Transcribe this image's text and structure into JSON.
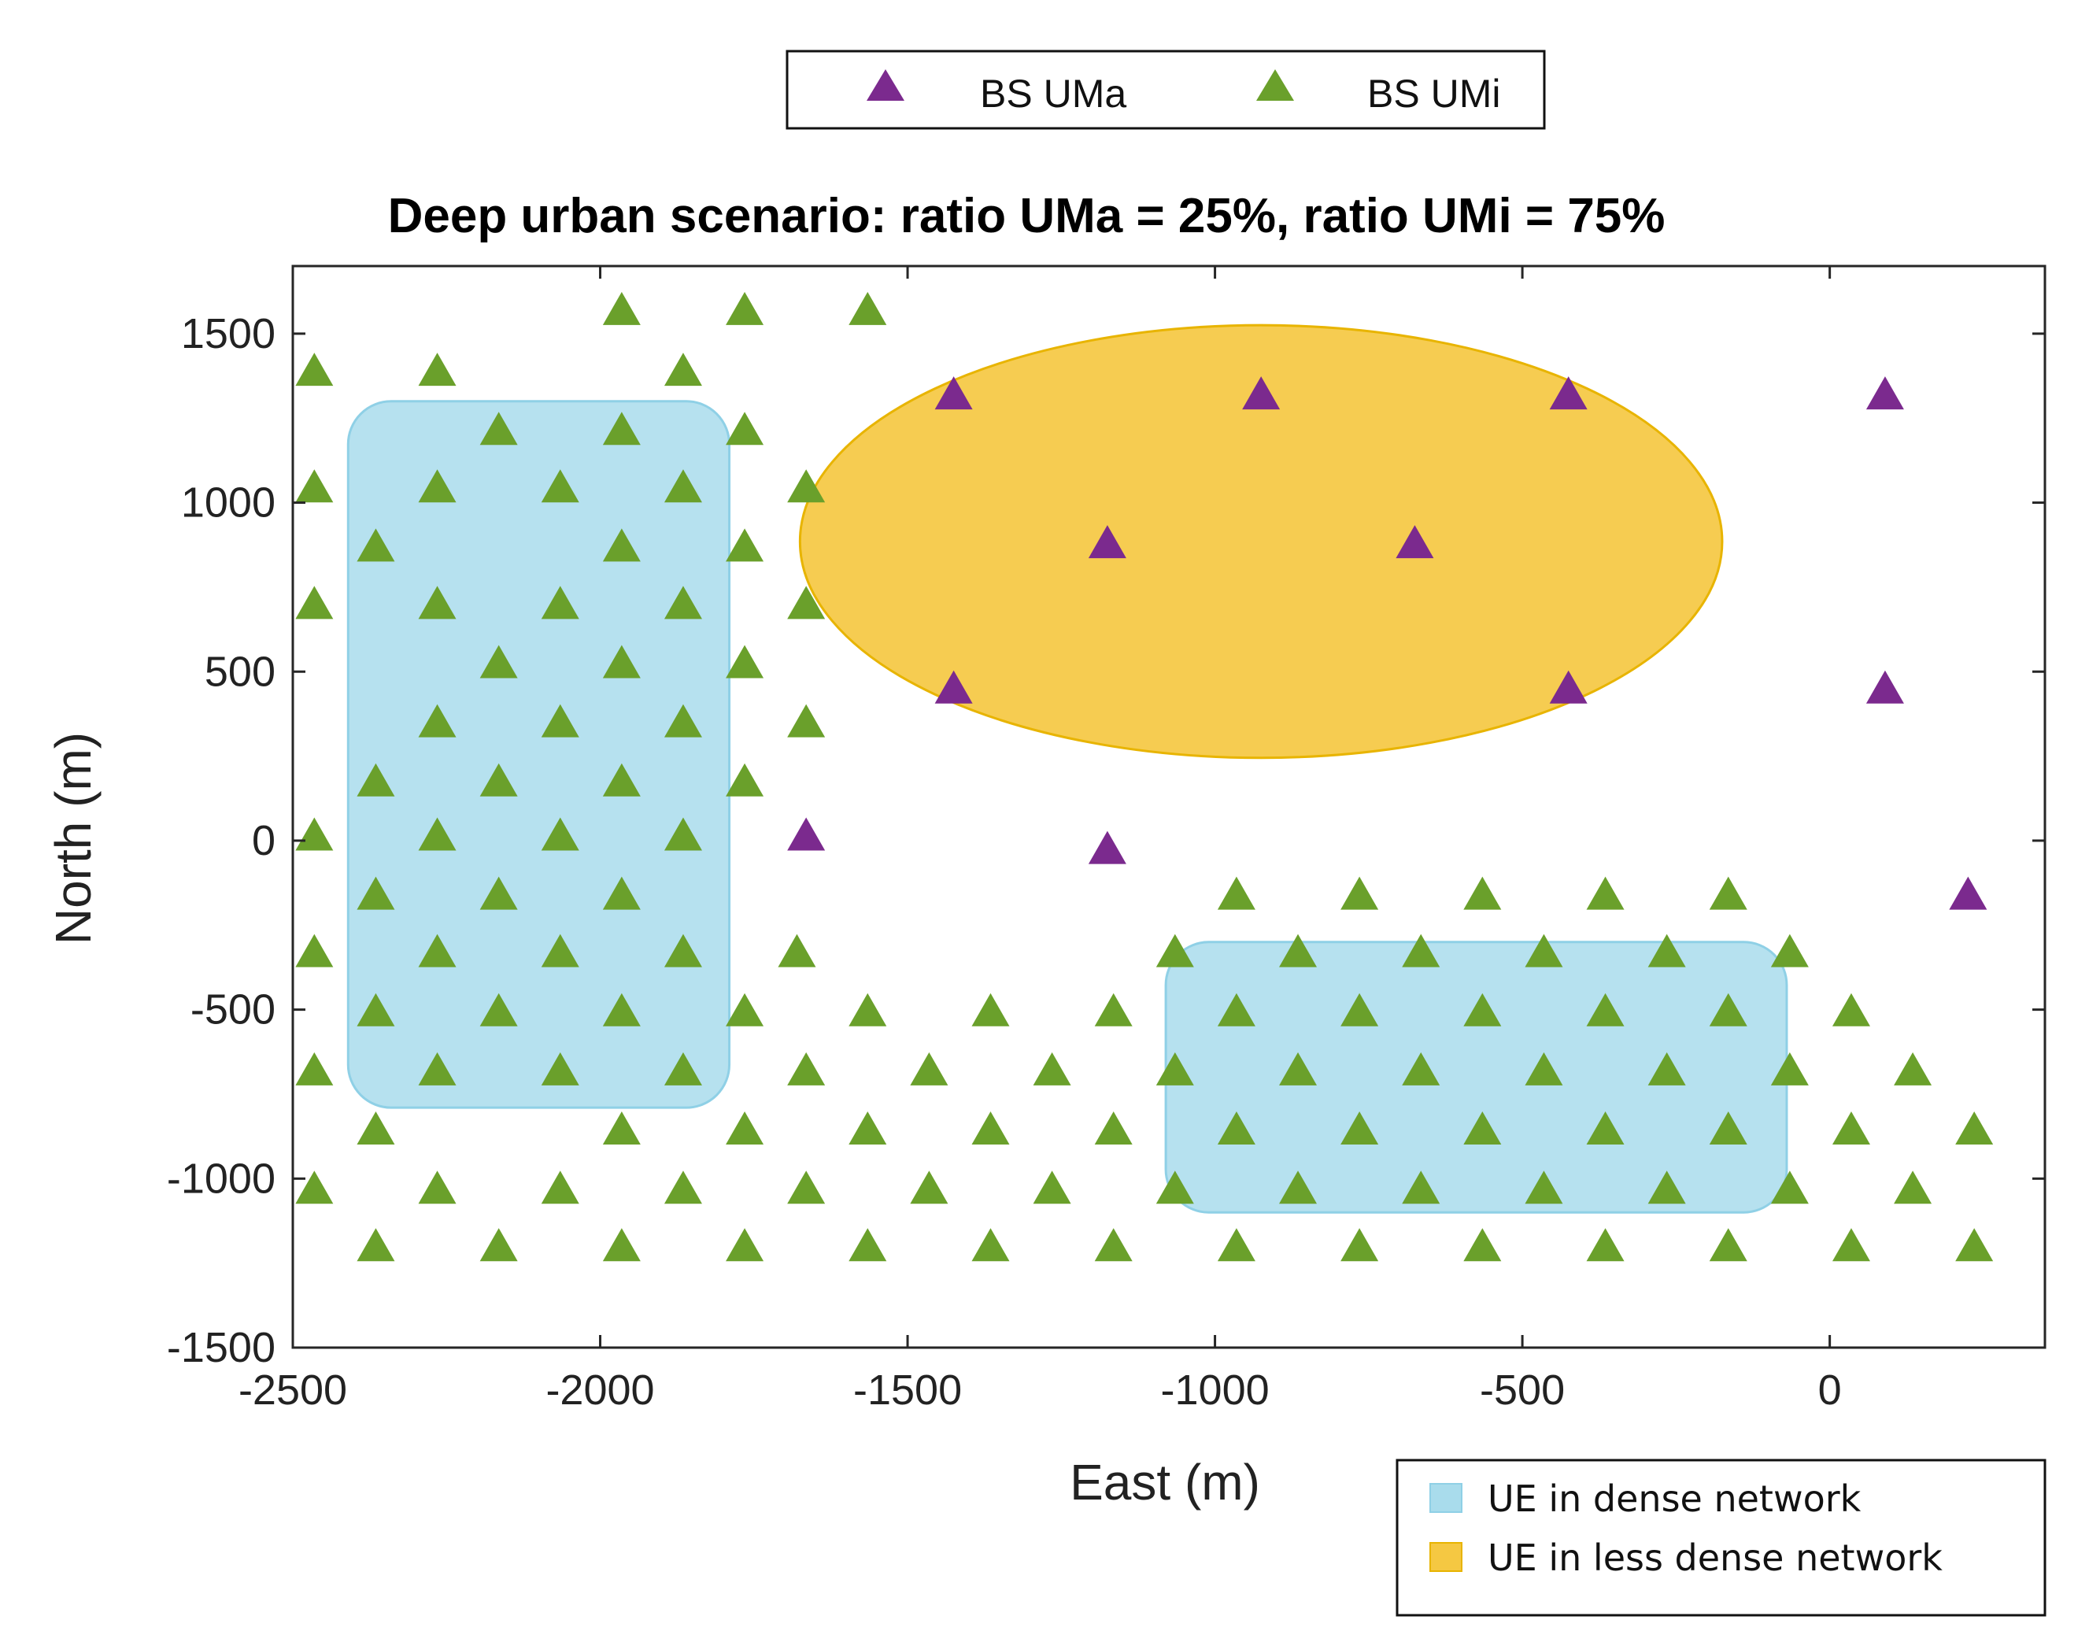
{
  "chart_data": {
    "type": "scatter",
    "title": "Deep urban scenario: ratio UMa = 25%, ratio UMi = 75%",
    "xlabel": "East (m)",
    "ylabel": "North (m)",
    "xlim": [
      -2500,
      350
    ],
    "ylim": [
      -1500,
      1700
    ],
    "xticks": [
      -2500,
      -2000,
      -1500,
      -1000,
      -500,
      0
    ],
    "yticks": [
      -1500,
      -1000,
      -500,
      0,
      500,
      1000,
      1500
    ],
    "xtick_labels": [
      "-2500",
      "-2000",
      "-1500",
      "-1000",
      "-500",
      "0"
    ],
    "ytick_labels": [
      "-1500",
      "-1000",
      "-500",
      "0",
      "500",
      "1000",
      "1500"
    ],
    "grid": false,
    "colors": {
      "umi": "#6aa02b",
      "uma": "#7b2a8e",
      "dense_fill": "#a9dcec",
      "dense_edge": "#8fd0e6",
      "less_dense_fill": "#f5c842",
      "less_dense_edge": "#e8b400"
    },
    "series": [
      {
        "name": "BS UMa",
        "marker": "triangle",
        "points": [
          [
            -1425,
            1320
          ],
          [
            -925,
            1320
          ],
          [
            -425,
            1320
          ],
          [
            90,
            1320
          ],
          [
            -1175,
            880
          ],
          [
            -675,
            880
          ],
          [
            -1425,
            450
          ],
          [
            -425,
            450
          ],
          [
            90,
            450
          ],
          [
            -1665,
            15
          ],
          [
            -1175,
            -25
          ],
          [
            225,
            -160
          ]
        ]
      },
      {
        "name": "BS UMi",
        "marker": "triangle",
        "points": [
          [
            -1965,
            1570
          ],
          [
            -1765,
            1570
          ],
          [
            -1565,
            1570
          ],
          [
            -2465,
            1390
          ],
          [
            -2265,
            1390
          ],
          [
            -1865,
            1390
          ],
          [
            -2165,
            1215
          ],
          [
            -1965,
            1215
          ],
          [
            -1765,
            1215
          ],
          [
            -2465,
            1045
          ],
          [
            -2265,
            1045
          ],
          [
            -2065,
            1045
          ],
          [
            -1865,
            1045
          ],
          [
            -1665,
            1045
          ],
          [
            -2365,
            870
          ],
          [
            -1965,
            870
          ],
          [
            -1765,
            870
          ],
          [
            -2465,
            700
          ],
          [
            -2265,
            700
          ],
          [
            -2065,
            700
          ],
          [
            -1865,
            700
          ],
          [
            -1665,
            700
          ],
          [
            -2165,
            525
          ],
          [
            -1965,
            525
          ],
          [
            -1765,
            525
          ],
          [
            -2265,
            350
          ],
          [
            -2065,
            350
          ],
          [
            -1865,
            350
          ],
          [
            -1665,
            350
          ],
          [
            -2365,
            175
          ],
          [
            -2165,
            175
          ],
          [
            -1965,
            175
          ],
          [
            -1765,
            175
          ],
          [
            -2465,
            15
          ],
          [
            -2265,
            15
          ],
          [
            -2065,
            15
          ],
          [
            -1865,
            15
          ],
          [
            -2365,
            -160
          ],
          [
            -2165,
            -160
          ],
          [
            -1965,
            -160
          ],
          [
            -965,
            -160
          ],
          [
            -765,
            -160
          ],
          [
            -565,
            -160
          ],
          [
            -365,
            -160
          ],
          [
            -165,
            -160
          ],
          [
            -2465,
            -330
          ],
          [
            -2265,
            -330
          ],
          [
            -2065,
            -330
          ],
          [
            -1865,
            -330
          ],
          [
            -1680,
            -330
          ],
          [
            -1065,
            -330
          ],
          [
            -865,
            -330
          ],
          [
            -665,
            -330
          ],
          [
            -465,
            -330
          ],
          [
            -265,
            -330
          ],
          [
            -65,
            -330
          ],
          [
            -2365,
            -505
          ],
          [
            -2165,
            -505
          ],
          [
            -1965,
            -505
          ],
          [
            -1765,
            -505
          ],
          [
            -1565,
            -505
          ],
          [
            -1365,
            -505
          ],
          [
            -1165,
            -505
          ],
          [
            -965,
            -505
          ],
          [
            -765,
            -505
          ],
          [
            -565,
            -505
          ],
          [
            -365,
            -505
          ],
          [
            -165,
            -505
          ],
          [
            35,
            -505
          ],
          [
            -2465,
            -680
          ],
          [
            -2265,
            -680
          ],
          [
            -2065,
            -680
          ],
          [
            -1865,
            -680
          ],
          [
            -1665,
            -680
          ],
          [
            -1465,
            -680
          ],
          [
            -1265,
            -680
          ],
          [
            -1065,
            -680
          ],
          [
            -865,
            -680
          ],
          [
            -665,
            -680
          ],
          [
            -465,
            -680
          ],
          [
            -265,
            -680
          ],
          [
            -65,
            -680
          ],
          [
            135,
            -680
          ],
          [
            -2365,
            -855
          ],
          [
            -1965,
            -855
          ],
          [
            -1765,
            -855
          ],
          [
            -1565,
            -855
          ],
          [
            -1365,
            -855
          ],
          [
            -1165,
            -855
          ],
          [
            -965,
            -855
          ],
          [
            -765,
            -855
          ],
          [
            -565,
            -855
          ],
          [
            -365,
            -855
          ],
          [
            -165,
            -855
          ],
          [
            35,
            -855
          ],
          [
            235,
            -855
          ],
          [
            -2465,
            -1030
          ],
          [
            -2265,
            -1030
          ],
          [
            -2065,
            -1030
          ],
          [
            -1865,
            -1030
          ],
          [
            -1665,
            -1030
          ],
          [
            -1465,
            -1030
          ],
          [
            -1265,
            -1030
          ],
          [
            -1065,
            -1030
          ],
          [
            -865,
            -1030
          ],
          [
            -665,
            -1030
          ],
          [
            -465,
            -1030
          ],
          [
            -265,
            -1030
          ],
          [
            -65,
            -1030
          ],
          [
            135,
            -1030
          ],
          [
            -2365,
            -1200
          ],
          [
            -2165,
            -1200
          ],
          [
            -1965,
            -1200
          ],
          [
            -1765,
            -1200
          ],
          [
            -1565,
            -1200
          ],
          [
            -1365,
            -1200
          ],
          [
            -1165,
            -1200
          ],
          [
            -965,
            -1200
          ],
          [
            -765,
            -1200
          ],
          [
            -565,
            -1200
          ],
          [
            -365,
            -1200
          ],
          [
            -165,
            -1200
          ],
          [
            35,
            -1200
          ],
          [
            235,
            -1200
          ]
        ]
      }
    ],
    "regions": [
      {
        "name": "UE in dense network",
        "shape": "rounded-rect",
        "x": [
          -2410,
          -1790
        ],
        "y": [
          -790,
          1300
        ],
        "corner": 70
      },
      {
        "name": "UE in dense network",
        "shape": "rounded-rect",
        "x": [
          -1080,
          -70
        ],
        "y": [
          -1100,
          -300
        ],
        "corner": 70
      },
      {
        "name": "UE in less dense network",
        "shape": "ellipse",
        "center": [
          -925,
          885
        ],
        "radii": [
          750,
          640
        ]
      }
    ],
    "legend_markers": [
      {
        "label": "BS UMa",
        "color_key": "uma"
      },
      {
        "label": "BS UMi",
        "color_key": "umi"
      }
    ],
    "legend_regions": [
      {
        "label": "UE in dense network",
        "color_key": "dense_fill"
      },
      {
        "label": "UE in less dense network",
        "color_key": "less_dense_fill"
      }
    ]
  }
}
